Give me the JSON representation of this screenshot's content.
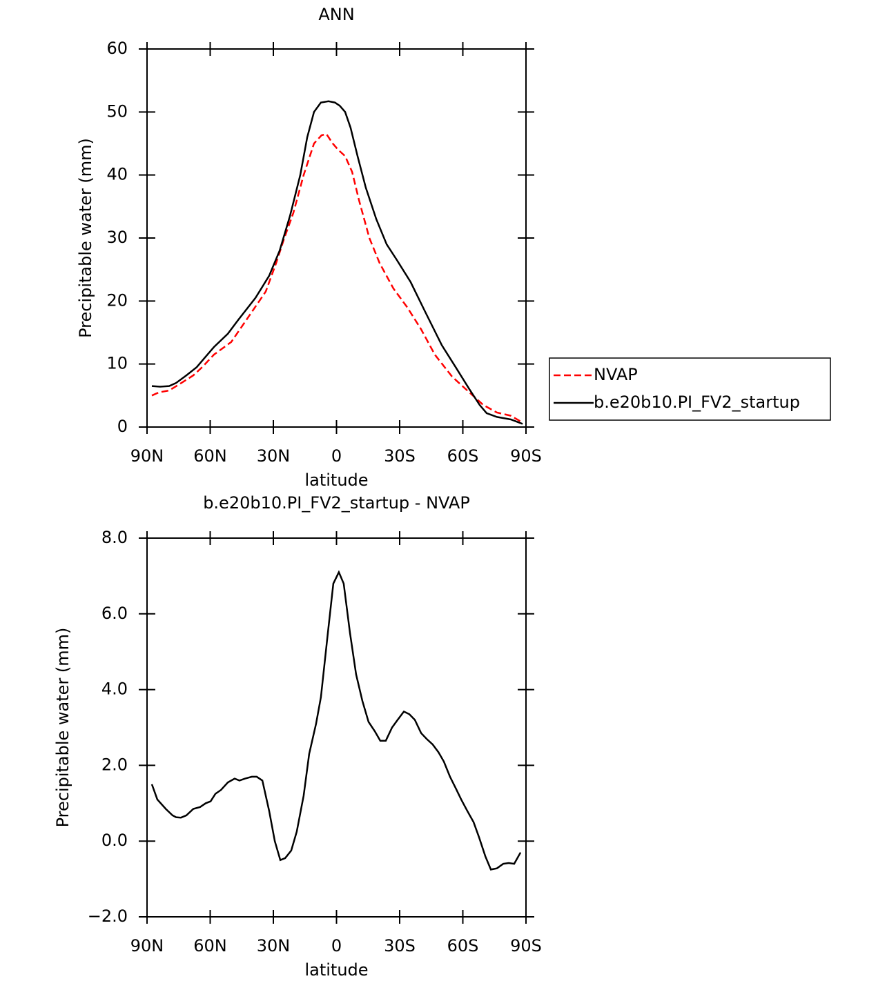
{
  "chart_data": [
    {
      "type": "line",
      "title": "ANN",
      "x_label": "latitude",
      "y_label": "Precipitable water (mm)",
      "xlim": [
        90,
        -90
      ],
      "xticks": [
        {
          "value": 90,
          "label": "90N"
        },
        {
          "value": 60,
          "label": "60N"
        },
        {
          "value": 30,
          "label": "30N"
        },
        0,
        {
          "value": -30,
          "label": "30S"
        },
        {
          "value": -60,
          "label": "60S"
        },
        {
          "value": -90,
          "label": "90S"
        }
      ],
      "ylim": [
        0,
        60
      ],
      "yticks": [
        0,
        10,
        20,
        30,
        40,
        50,
        60
      ],
      "legend_position": "right",
      "series": [
        {
          "name": "NVAP",
          "color": "#ff0000",
          "dash": true,
          "x": [
            87.7,
            84.4,
            79.5,
            74.6,
            68,
            63.8,
            58.2,
            50,
            41.8,
            33.6,
            28.7,
            24.8,
            20.5,
            15.6,
            10.7,
            7.1,
            4.8,
            1.8,
            -0.8,
            -4.1,
            -7.4,
            -10.7,
            -15.6,
            -20.5,
            -27,
            -33.6,
            -40.2,
            -46.7,
            -54.9,
            -63.1,
            -69.7,
            -76.2,
            -82.8,
            -88.4
          ],
          "values": [
            5,
            5.5,
            5.8,
            6.8,
            8.2,
            9.5,
            11.5,
            13.5,
            17.5,
            21.5,
            26,
            30,
            34,
            40,
            45,
            46.3,
            46.5,
            45,
            44,
            43,
            40.5,
            36,
            30,
            26,
            22,
            19,
            15.5,
            11.5,
            8,
            5.5,
            3.5,
            2.3,
            1.8,
            0.7
          ]
        },
        {
          "name": "b.e20b10.PI_FV2_startup",
          "color": "#000000",
          "dash": false,
          "x": [
            87.7,
            83.8,
            79.5,
            76.2,
            71.3,
            66.4,
            63.1,
            58.2,
            51.6,
            46.7,
            38.5,
            32,
            27,
            22.1,
            17.2,
            13.9,
            10.7,
            7.4,
            3.8,
            0.8,
            -1.5,
            -4.1,
            -6.7,
            -10,
            -13.9,
            -18.9,
            -23.8,
            -28.7,
            -35.2,
            -41.8,
            -50,
            -56.6,
            -63.1,
            -68,
            -71.3,
            -76.2,
            -82.8,
            -88.4
          ],
          "values": [
            6.5,
            6.4,
            6.5,
            7,
            8.2,
            9.5,
            10.8,
            12.7,
            14.8,
            17,
            20.5,
            24,
            28,
            33.5,
            40,
            46,
            50,
            51.5,
            51.7,
            51.5,
            51,
            50,
            47.5,
            43,
            38,
            33,
            29,
            26.5,
            23,
            18.5,
            13,
            9.5,
            6,
            3.5,
            2.2,
            1.6,
            1.2,
            0.5
          ]
        }
      ]
    },
    {
      "type": "line",
      "title": "b.e20b10.PI_FV2_startup - NVAP",
      "x_label": "latitude",
      "y_label": "Precipitable water (mm)",
      "xlim": [
        90,
        -90
      ],
      "xticks": [
        {
          "value": 90,
          "label": "90N"
        },
        {
          "value": 60,
          "label": "60N"
        },
        {
          "value": 30,
          "label": "30N"
        },
        0,
        {
          "value": -30,
          "label": "30S"
        },
        {
          "value": -60,
          "label": "60S"
        },
        {
          "value": -90,
          "label": "90S"
        }
      ],
      "ylim": [
        -2,
        8
      ],
      "yticks": [
        {
          "value": -2,
          "label": "−2.0"
        },
        {
          "value": 0,
          "label": "0.0"
        },
        {
          "value": 2,
          "label": "2.0"
        },
        {
          "value": 4,
          "label": "4.0"
        },
        {
          "value": 6,
          "label": "6.0"
        },
        {
          "value": 8,
          "label": "8.0"
        }
      ],
      "color": "#000000",
      "x": [
        87.7,
        85.1,
        81.1,
        77.9,
        76.2,
        73.9,
        71.3,
        68,
        64.8,
        62.1,
        59.8,
        57.5,
        54.9,
        51.6,
        48.4,
        46.1,
        43.4,
        40.2,
        37.9,
        35.2,
        32,
        29.3,
        26.7,
        24.4,
        21.5,
        18.9,
        15.6,
        13,
        9.7,
        7.4,
        4.1,
        1.5,
        -1.1,
        -3.4,
        -6.4,
        -9.3,
        -12.3,
        -15.2,
        -18.2,
        -20.8,
        -23.4,
        -26.4,
        -29,
        -32,
        -34.6,
        -37.2,
        -40.2,
        -42.8,
        -45.7,
        -48.4,
        -51,
        -53.9,
        -56.6,
        -59.2,
        -62.1,
        -65.1,
        -67.7,
        -70.7,
        -73.3,
        -76.2,
        -79.2,
        -81.8,
        -84.4,
        -87.4
      ],
      "values": [
        1.5,
        1.1,
        0.85,
        0.68,
        0.63,
        0.62,
        0.68,
        0.85,
        0.9,
        1.0,
        1.05,
        1.25,
        1.35,
        1.55,
        1.65,
        1.6,
        1.65,
        1.7,
        1.7,
        1.6,
        0.8,
        0,
        -0.5,
        -0.45,
        -0.25,
        0.25,
        1.2,
        2.3,
        3.1,
        3.8,
        5.5,
        6.8,
        7.1,
        6.8,
        5.5,
        4.4,
        3.7,
        3.15,
        2.9,
        2.65,
        2.65,
        3.0,
        3.2,
        3.42,
        3.35,
        3.2,
        2.85,
        2.7,
        2.55,
        2.35,
        2.1,
        1.7,
        1.4,
        1.1,
        0.8,
        0.5,
        0.1,
        -0.4,
        -0.75,
        -0.72,
        -0.6,
        -0.58,
        -0.6,
        -0.3
      ]
    }
  ]
}
